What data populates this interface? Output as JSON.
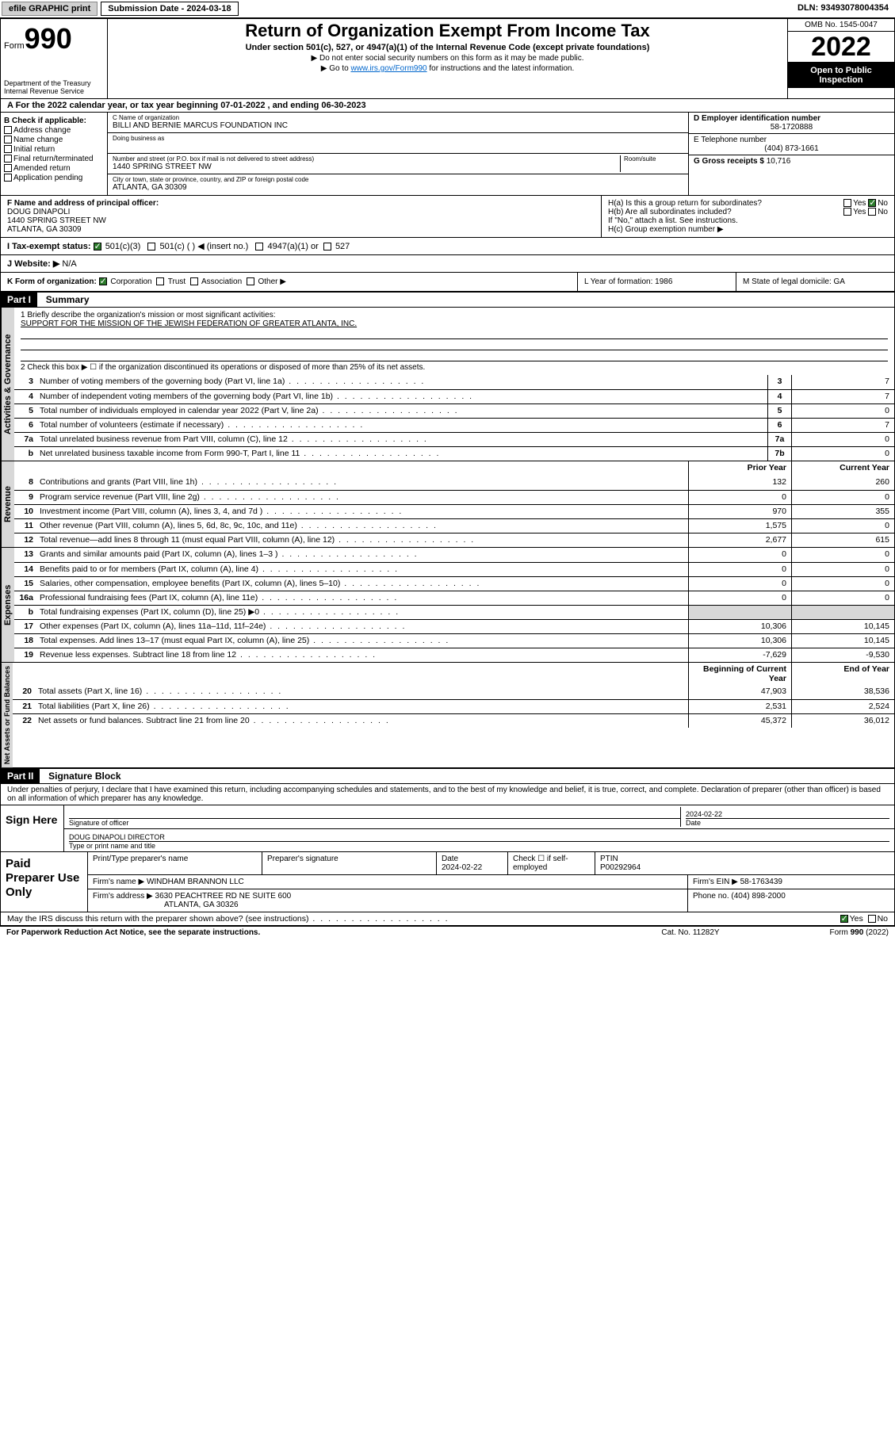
{
  "topbar": {
    "efile": "efile GRAPHIC print",
    "submission_label": "Submission Date - 2024-03-18",
    "dln": "DLN: 93493078004354"
  },
  "header": {
    "form_word": "Form",
    "form_no": "990",
    "dept": "Department of the Treasury",
    "irs": "Internal Revenue Service",
    "title": "Return of Organization Exempt From Income Tax",
    "subtitle": "Under section 501(c), 527, or 4947(a)(1) of the Internal Revenue Code (except private foundations)",
    "note1": "▶ Do not enter social security numbers on this form as it may be made public.",
    "note2_pre": "▶ Go to ",
    "note2_link": "www.irs.gov/Form990",
    "note2_post": " for instructions and the latest information.",
    "omb": "OMB No. 1545-0047",
    "year": "2022",
    "inspection": "Open to Public Inspection"
  },
  "rowA": "A For the 2022 calendar year, or tax year beginning 07-01-2022   , and ending 06-30-2023",
  "boxB": {
    "label": "B Check if applicable:",
    "opts": [
      "Address change",
      "Name change",
      "Initial return",
      "Final return/terminated",
      "Amended return",
      "Application pending"
    ]
  },
  "boxC": {
    "name_lbl": "C Name of organization",
    "name": "BILLI AND BERNIE MARCUS FOUNDATION INC",
    "dba_lbl": "Doing business as",
    "dba": "",
    "addr_lbl": "Number and street (or P.O. box if mail is not delivered to street address)",
    "room_lbl": "Room/suite",
    "addr": "1440 SPRING STREET NW",
    "city_lbl": "City or town, state or province, country, and ZIP or foreign postal code",
    "city": "ATLANTA, GA  30309"
  },
  "boxD": {
    "lbl": "D Employer identification number",
    "val": "58-1720888"
  },
  "boxE": {
    "lbl": "E Telephone number",
    "val": "(404) 873-1661"
  },
  "boxG": {
    "lbl": "G Gross receipts $",
    "val": "10,716"
  },
  "boxF": {
    "lbl": "F Name and address of principal officer:",
    "name": "DOUG DINAPOLI",
    "addr1": "1440 SPRING STREET NW",
    "addr2": "ATLANTA, GA  30309"
  },
  "boxH": {
    "a_lbl": "H(a)  Is this a group return for subordinates?",
    "a_yes": "Yes",
    "a_no": "No",
    "b_lbl": "H(b)  Are all subordinates included?",
    "b_yes": "Yes",
    "b_no": "No",
    "b_note": "If \"No,\" attach a list. See instructions.",
    "c_lbl": "H(c)  Group exemption number ▶"
  },
  "rowI": {
    "lbl": "I   Tax-exempt status:",
    "o1": "501(c)(3)",
    "o2": "501(c) (   ) ◀ (insert no.)",
    "o3": "4947(a)(1) or",
    "o4": "527"
  },
  "rowJ": {
    "lbl": "J   Website: ▶",
    "val": "N/A"
  },
  "rowK": {
    "k1_lbl": "K Form of organization:",
    "k1_opts": [
      "Corporation",
      "Trust",
      "Association",
      "Other ▶"
    ],
    "k2": "L Year of formation: 1986",
    "k3": "M State of legal domicile: GA"
  },
  "part1": {
    "tag": "Part I",
    "title": "Summary"
  },
  "gov": {
    "q1_lbl": "1   Briefly describe the organization's mission or most significant activities:",
    "q1_val": "SUPPORT FOR THE MISSION OF THE JEWISH FEDERATION OF GREATER ATLANTA, INC.",
    "q2": "2   Check this box ▶ ☐  if the organization discontinued its operations or disposed of more than 25% of its net assets.",
    "lines": [
      {
        "n": "3",
        "t": "Number of voting members of the governing body (Part VI, line 1a)",
        "b": "3",
        "v": "7"
      },
      {
        "n": "4",
        "t": "Number of independent voting members of the governing body (Part VI, line 1b)",
        "b": "4",
        "v": "7"
      },
      {
        "n": "5",
        "t": "Total number of individuals employed in calendar year 2022 (Part V, line 2a)",
        "b": "5",
        "v": "0"
      },
      {
        "n": "6",
        "t": "Total number of volunteers (estimate if necessary)",
        "b": "6",
        "v": "7"
      },
      {
        "n": "7a",
        "t": "Total unrelated business revenue from Part VIII, column (C), line 12",
        "b": "7a",
        "v": "0"
      },
      {
        "n": "b",
        "t": "Net unrelated business taxable income from Form 990-T, Part I, line 11",
        "b": "7b",
        "v": "0"
      }
    ]
  },
  "twoColHdr": {
    "prior": "Prior Year",
    "current": "Current Year"
  },
  "rev": [
    {
      "n": "8",
      "t": "Contributions and grants (Part VIII, line 1h)",
      "p": "132",
      "c": "260"
    },
    {
      "n": "9",
      "t": "Program service revenue (Part VIII, line 2g)",
      "p": "0",
      "c": "0"
    },
    {
      "n": "10",
      "t": "Investment income (Part VIII, column (A), lines 3, 4, and 7d )",
      "p": "970",
      "c": "355"
    },
    {
      "n": "11",
      "t": "Other revenue (Part VIII, column (A), lines 5, 6d, 8c, 9c, 10c, and 11e)",
      "p": "1,575",
      "c": "0"
    },
    {
      "n": "12",
      "t": "Total revenue—add lines 8 through 11 (must equal Part VIII, column (A), line 12)",
      "p": "2,677",
      "c": "615"
    }
  ],
  "exp": [
    {
      "n": "13",
      "t": "Grants and similar amounts paid (Part IX, column (A), lines 1–3 )",
      "p": "0",
      "c": "0"
    },
    {
      "n": "14",
      "t": "Benefits paid to or for members (Part IX, column (A), line 4)",
      "p": "0",
      "c": "0"
    },
    {
      "n": "15",
      "t": "Salaries, other compensation, employee benefits (Part IX, column (A), lines 5–10)",
      "p": "0",
      "c": "0"
    },
    {
      "n": "16a",
      "t": "Professional fundraising fees (Part IX, column (A), line 11e)",
      "p": "0",
      "c": "0"
    },
    {
      "n": "b",
      "t": "Total fundraising expenses (Part IX, column (D), line 25) ▶0",
      "p": "",
      "c": "",
      "shade": true
    },
    {
      "n": "17",
      "t": "Other expenses (Part IX, column (A), lines 11a–11d, 11f–24e)",
      "p": "10,306",
      "c": "10,145"
    },
    {
      "n": "18",
      "t": "Total expenses. Add lines 13–17 (must equal Part IX, column (A), line 25)",
      "p": "10,306",
      "c": "10,145"
    },
    {
      "n": "19",
      "t": "Revenue less expenses. Subtract line 18 from line 12",
      "p": "-7,629",
      "c": "-9,530"
    }
  ],
  "netHdr": {
    "begin": "Beginning of Current Year",
    "end": "End of Year"
  },
  "net": [
    {
      "n": "20",
      "t": "Total assets (Part X, line 16)",
      "p": "47,903",
      "c": "38,536"
    },
    {
      "n": "21",
      "t": "Total liabilities (Part X, line 26)",
      "p": "2,531",
      "c": "2,524"
    },
    {
      "n": "22",
      "t": "Net assets or fund balances. Subtract line 21 from line 20",
      "p": "45,372",
      "c": "36,012"
    }
  ],
  "part2": {
    "tag": "Part II",
    "title": "Signature Block"
  },
  "penalties": "Under penalties of perjury, I declare that I have examined this return, including accompanying schedules and statements, and to the best of my knowledge and belief, it is true, correct, and complete. Declaration of preparer (other than officer) is based on all information of which preparer has any knowledge.",
  "sign": {
    "here": "Sign Here",
    "sig_lbl": "Signature of officer",
    "date_lbl": "Date",
    "date_val": "2024-02-22",
    "name": "DOUG DINAPOLI DIRECTOR",
    "name_lbl": "Type or print name and title"
  },
  "paid": {
    "title": "Paid Preparer Use Only",
    "h1": "Print/Type preparer's name",
    "h2": "Preparer's signature",
    "h3": "Date",
    "h3v": "2024-02-22",
    "h4": "Check ☐ if self-employed",
    "h5": "PTIN",
    "h5v": "P00292964",
    "firm_lbl": "Firm's name    ▶",
    "firm": "WINDHAM BRANNON LLC",
    "ein_lbl": "Firm's EIN ▶",
    "ein": "58-1763439",
    "addr_lbl": "Firm's address ▶",
    "addr1": "3630 PEACHTREE RD NE SUITE 600",
    "addr2": "ATLANTA, GA  30326",
    "phone_lbl": "Phone no.",
    "phone": "(404) 898-2000"
  },
  "discuss": {
    "q": "May the IRS discuss this return with the preparer shown above? (see instructions)",
    "yes": "Yes",
    "no": "No"
  },
  "footer": {
    "pra": "For Paperwork Reduction Act Notice, see the separate instructions.",
    "cat": "Cat. No. 11282Y",
    "form": "Form 990 (2022)"
  },
  "vtabs": {
    "gov": "Activities & Governance",
    "rev": "Revenue",
    "exp": "Expenses",
    "net": "Net Assets or Fund Balances"
  }
}
